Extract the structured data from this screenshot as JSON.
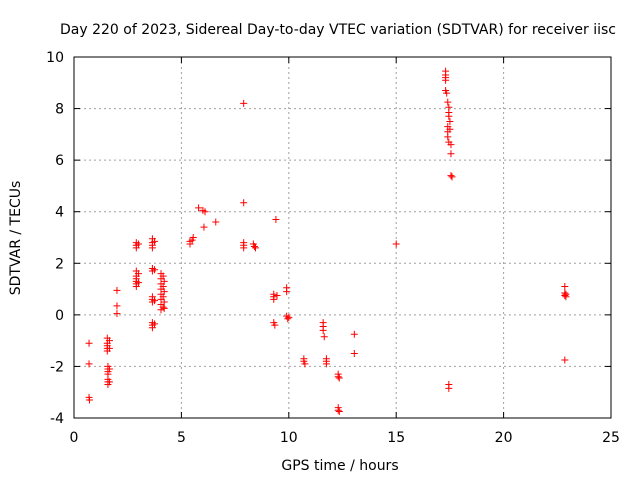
{
  "chart_data": {
    "type": "scatter",
    "title": "Day 220 of 2023, Sidereal Day-to-day VTEC variation (SDTVAR) for receiver iisc",
    "xlabel": "GPS time / hours",
    "ylabel": "SDTVAR / TECUs",
    "xlim": [
      0,
      25
    ],
    "ylim": [
      -4,
      10
    ],
    "xticks": [
      0,
      5,
      10,
      15,
      20,
      25
    ],
    "yticks": [
      -4,
      -2,
      0,
      2,
      4,
      6,
      8,
      10
    ],
    "grid": true,
    "marker": "+",
    "color": "#ff0000",
    "series": [
      {
        "name": "SDTVAR",
        "points": [
          [
            0.7,
            -1.1
          ],
          [
            0.7,
            -1.9
          ],
          [
            0.7,
            -3.2
          ],
          [
            0.72,
            -3.3
          ],
          [
            1.55,
            -0.9
          ],
          [
            1.55,
            -1.1
          ],
          [
            1.55,
            -1.2
          ],
          [
            1.55,
            -1.3
          ],
          [
            1.55,
            -1.4
          ],
          [
            1.58,
            -2.0
          ],
          [
            1.58,
            -2.1
          ],
          [
            1.58,
            -2.2
          ],
          [
            1.58,
            -2.3
          ],
          [
            1.58,
            -2.5
          ],
          [
            1.58,
            -2.6
          ],
          [
            1.58,
            -2.7
          ],
          [
            1.65,
            -1.0
          ],
          [
            1.65,
            -1.3
          ],
          [
            1.65,
            -2.1
          ],
          [
            1.65,
            -2.6
          ],
          [
            2.0,
            0.95
          ],
          [
            2.0,
            0.35
          ],
          [
            2.0,
            0.05
          ],
          [
            2.9,
            2.8
          ],
          [
            2.9,
            2.7
          ],
          [
            2.9,
            2.6
          ],
          [
            2.9,
            1.7
          ],
          [
            2.9,
            1.5
          ],
          [
            2.9,
            1.4
          ],
          [
            2.9,
            1.3
          ],
          [
            2.9,
            1.2
          ],
          [
            2.9,
            1.1
          ],
          [
            3.0,
            2.75
          ],
          [
            3.0,
            1.6
          ],
          [
            3.0,
            1.25
          ],
          [
            3.65,
            2.95
          ],
          [
            3.65,
            2.8
          ],
          [
            3.65,
            2.7
          ],
          [
            3.65,
            2.6
          ],
          [
            3.65,
            1.8
          ],
          [
            3.65,
            1.7
          ],
          [
            3.65,
            0.7
          ],
          [
            3.65,
            0.6
          ],
          [
            3.65,
            0.5
          ],
          [
            3.65,
            -0.3
          ],
          [
            3.65,
            -0.4
          ],
          [
            3.65,
            -0.5
          ],
          [
            3.75,
            2.85
          ],
          [
            3.75,
            1.75
          ],
          [
            3.75,
            0.55
          ],
          [
            3.75,
            -0.35
          ],
          [
            4.05,
            1.6
          ],
          [
            4.05,
            1.4
          ],
          [
            4.05,
            1.2
          ],
          [
            4.05,
            1.0
          ],
          [
            4.05,
            0.8
          ],
          [
            4.05,
            0.6
          ],
          [
            4.05,
            0.4
          ],
          [
            4.05,
            0.2
          ],
          [
            4.15,
            1.5
          ],
          [
            4.15,
            1.1
          ],
          [
            4.15,
            0.7
          ],
          [
            4.15,
            0.3
          ],
          [
            4.2,
            1.3
          ],
          [
            4.2,
            0.9
          ],
          [
            4.2,
            0.5
          ],
          [
            4.2,
            0.25
          ],
          [
            5.4,
            2.75
          ],
          [
            5.4,
            2.85
          ],
          [
            5.5,
            2.9
          ],
          [
            5.55,
            3.0
          ],
          [
            5.8,
            4.15
          ],
          [
            6.0,
            4.05
          ],
          [
            6.05,
            3.4
          ],
          [
            6.1,
            4.0
          ],
          [
            6.6,
            3.6
          ],
          [
            7.9,
            8.2
          ],
          [
            7.9,
            4.35
          ],
          [
            7.9,
            2.8
          ],
          [
            7.9,
            2.7
          ],
          [
            7.9,
            2.6
          ],
          [
            8.35,
            2.75
          ],
          [
            8.4,
            2.65
          ],
          [
            8.45,
            2.6
          ],
          [
            9.3,
            0.8
          ],
          [
            9.3,
            0.7
          ],
          [
            9.3,
            0.6
          ],
          [
            9.3,
            -0.3
          ],
          [
            9.35,
            -0.4
          ],
          [
            9.4,
            3.7
          ],
          [
            9.45,
            0.75
          ],
          [
            9.9,
            1.05
          ],
          [
            9.9,
            0.9
          ],
          [
            9.9,
            -0.05
          ],
          [
            9.95,
            -0.15
          ],
          [
            10.0,
            -0.1
          ],
          [
            10.7,
            -1.7
          ],
          [
            10.7,
            -1.8
          ],
          [
            10.75,
            -1.9
          ],
          [
            11.6,
            -0.3
          ],
          [
            11.6,
            -0.45
          ],
          [
            11.6,
            -0.6
          ],
          [
            11.65,
            -0.85
          ],
          [
            11.75,
            -1.7
          ],
          [
            11.75,
            -1.8
          ],
          [
            11.75,
            -1.9
          ],
          [
            12.3,
            -2.3
          ],
          [
            12.3,
            -2.4
          ],
          [
            12.35,
            -2.45
          ],
          [
            12.3,
            -3.6
          ],
          [
            12.3,
            -3.7
          ],
          [
            12.35,
            -3.75
          ],
          [
            13.05,
            -0.75
          ],
          [
            13.05,
            -1.5
          ],
          [
            15.0,
            2.75
          ],
          [
            17.3,
            9.45
          ],
          [
            17.3,
            9.3
          ],
          [
            17.3,
            9.2
          ],
          [
            17.3,
            9.1
          ],
          [
            17.3,
            8.7
          ],
          [
            17.35,
            8.6
          ],
          [
            17.4,
            8.25
          ],
          [
            17.45,
            8.05
          ],
          [
            17.45,
            7.85
          ],
          [
            17.45,
            7.7
          ],
          [
            17.4,
            7.3
          ],
          [
            17.4,
            7.1
          ],
          [
            17.4,
            6.9
          ],
          [
            17.5,
            7.5
          ],
          [
            17.5,
            7.2
          ],
          [
            17.45,
            6.7
          ],
          [
            17.55,
            6.6
          ],
          [
            17.55,
            6.25
          ],
          [
            17.55,
            5.4
          ],
          [
            17.6,
            5.35
          ],
          [
            17.45,
            -2.7
          ],
          [
            17.45,
            -2.85
          ],
          [
            22.85,
            1.1
          ],
          [
            22.85,
            0.85
          ],
          [
            22.85,
            0.75
          ],
          [
            22.9,
            0.8
          ],
          [
            22.9,
            0.7
          ],
          [
            22.85,
            -1.75
          ]
        ]
      }
    ]
  }
}
